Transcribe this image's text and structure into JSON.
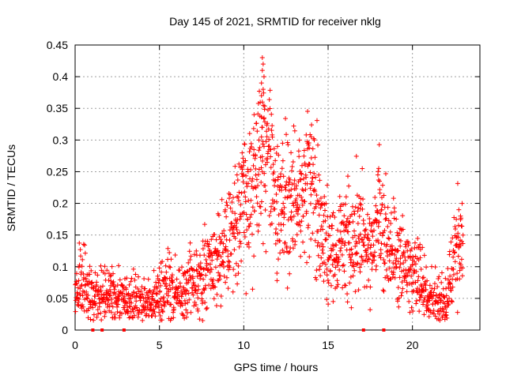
{
  "chart_data": {
    "type": "scatter",
    "title": "Day 145 of 2021, SRMTID for receiver nklg",
    "xlabel": "GPS time / hours",
    "ylabel": "SRMTID / TECUs",
    "xlim": [
      0,
      24
    ],
    "ylim": [
      0,
      0.45
    ],
    "xticks": [
      0,
      5,
      10,
      15,
      20
    ],
    "xtick_labels": [
      "0",
      "5",
      "10",
      "15",
      "20"
    ],
    "yticks": [
      0,
      0.05,
      0.1,
      0.15,
      0.2,
      0.25,
      0.3,
      0.35,
      0.4,
      0.45
    ],
    "ytick_labels": [
      "0",
      "0.05",
      "0.1",
      "0.15",
      "0.2",
      "0.25",
      "0.3",
      "0.35",
      "0.4",
      "0.45"
    ],
    "grid": true,
    "marker": "+",
    "color": "#ff0000",
    "zero_markers_x": [
      1.05,
      1.6,
      2.9,
      17.1,
      18.3
    ],
    "profile": {
      "x": [
        0,
        0.3,
        0.8,
        1.5,
        2,
        3,
        4,
        5,
        5.3,
        6,
        7,
        8,
        9,
        9.7,
        10.3,
        11,
        11.5,
        12,
        12.5,
        13,
        13.5,
        14,
        14.4,
        15,
        15.5,
        16,
        16.5,
        17,
        17.5,
        18,
        18.5,
        19,
        19.5,
        20,
        20.5,
        21,
        22,
        22.3,
        22.6,
        23
      ],
      "y": [
        0.05,
        0.08,
        0.05,
        0.05,
        0.06,
        0.045,
        0.04,
        0.05,
        0.07,
        0.06,
        0.07,
        0.1,
        0.13,
        0.17,
        0.21,
        0.26,
        0.27,
        0.2,
        0.2,
        0.21,
        0.2,
        0.23,
        0.18,
        0.13,
        0.12,
        0.16,
        0.14,
        0.15,
        0.13,
        0.17,
        0.13,
        0.12,
        0.11,
        0.09,
        0.085,
        0.045,
        0.04,
        0.085,
        0.12,
        0.14
      ]
    },
    "peak_points": [
      [
        11.1,
        0.43
      ],
      [
        11.15,
        0.42
      ],
      [
        11.1,
        0.41
      ],
      [
        11.2,
        0.4
      ],
      [
        11.05,
        0.39
      ],
      [
        11.15,
        0.38
      ],
      [
        11.05,
        0.37
      ],
      [
        11.1,
        0.36
      ],
      [
        11.2,
        0.335
      ],
      [
        11.1,
        0.32
      ],
      [
        11.05,
        0.305
      ],
      [
        11.2,
        0.29
      ],
      [
        12.3,
        0.295
      ],
      [
        13.3,
        0.3
      ],
      [
        13.8,
        0.295
      ],
      [
        14.0,
        0.305
      ],
      [
        12.8,
        0.28
      ],
      [
        10.9,
        0.3
      ],
      [
        10.6,
        0.285
      ],
      [
        9.6,
        0.245
      ],
      [
        10.0,
        0.265
      ],
      [
        11.6,
        0.285
      ],
      [
        12.0,
        0.29
      ],
      [
        18.0,
        0.255
      ],
      [
        17.95,
        0.245
      ],
      [
        18.05,
        0.235
      ],
      [
        22.75,
        0.19
      ],
      [
        22.85,
        0.18
      ],
      [
        22.6,
        0.175
      ]
    ]
  }
}
